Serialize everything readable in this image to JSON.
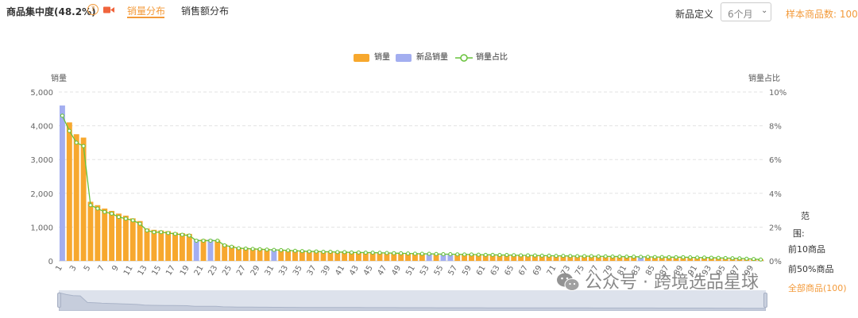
{
  "header": {
    "metric_title": "商品集中度(48.2%)",
    "help_icon": "question-circle-icon",
    "video_icon": "video-camera-icon",
    "tabs": [
      {
        "label": "销量分布",
        "active": true
      },
      {
        "label": "销售额分布",
        "active": false
      }
    ],
    "new_product_label": "新品定义",
    "period": {
      "value": "6个月",
      "icon": "chevron-down-icon"
    },
    "sample_count": "样本商品数: 100"
  },
  "colors": {
    "accent": "#f39a3a",
    "bar_normal": "#f7a82e",
    "bar_new": "#a3aef0",
    "line": "#67c23a"
  },
  "range_filter": {
    "label": "范",
    "label2": "围:",
    "options": [
      "前10商品",
      "前50%商品",
      "全部商品(100)"
    ],
    "selected": 2
  },
  "watermark": {
    "icon": "wechat-icon",
    "text": "公众号 · 跨境选品星球"
  },
  "chart_data": {
    "type": "bar",
    "legend": [
      "销量",
      "新品销量",
      "销量占比"
    ],
    "legend_placement": "top-center",
    "ylabel_left": "销量",
    "ylabel_right": "销量占比",
    "ylim_left": [
      0,
      5000
    ],
    "ylim_right": [
      0,
      10
    ],
    "yticks_left": [
      "0",
      "1,000",
      "2,000",
      "3,000",
      "4,000",
      "5,000"
    ],
    "yticks_right": [
      "0%",
      "2%",
      "4%",
      "6%",
      "8%",
      "10%"
    ],
    "xticks": [
      "1",
      "3",
      "5",
      "7",
      "9",
      "11",
      "13",
      "15",
      "17",
      "19",
      "21",
      "23",
      "25",
      "27",
      "29",
      "31",
      "33",
      "35",
      "37",
      "39",
      "41",
      "43",
      "45",
      "47",
      "49",
      "51",
      "53",
      "55",
      "57",
      "59",
      "61",
      "63",
      "65",
      "67",
      "69",
      "71",
      "73",
      "75",
      "77",
      "79",
      "81",
      "83",
      "85",
      "87",
      "89",
      "91",
      "93",
      "95",
      "97",
      "99"
    ],
    "grid": "horizontal-dashed",
    "x": [
      1,
      2,
      3,
      4,
      5,
      6,
      7,
      8,
      9,
      10,
      11,
      12,
      13,
      14,
      15,
      16,
      17,
      18,
      19,
      20,
      21,
      22,
      23,
      24,
      25,
      26,
      27,
      28,
      29,
      30,
      31,
      32,
      33,
      34,
      35,
      36,
      37,
      38,
      39,
      40,
      41,
      42,
      43,
      44,
      45,
      46,
      47,
      48,
      49,
      50,
      51,
      52,
      53,
      54,
      55,
      56,
      57,
      58,
      59,
      60,
      61,
      62,
      63,
      64,
      65,
      66,
      67,
      68,
      69,
      70,
      71,
      72,
      73,
      74,
      75,
      76,
      77,
      78,
      79,
      80,
      81,
      82,
      83,
      84,
      85,
      86,
      87,
      88,
      89,
      90,
      91,
      92,
      93,
      94,
      95,
      96,
      97,
      98,
      99,
      100
    ],
    "sales": [
      4600,
      4100,
      3750,
      3650,
      1750,
      1650,
      1550,
      1480,
      1400,
      1340,
      1260,
      1180,
      960,
      920,
      900,
      880,
      840,
      820,
      800,
      640,
      640,
      640,
      620,
      490,
      450,
      400,
      390,
      380,
      370,
      360,
      350,
      340,
      330,
      320,
      310,
      300,
      300,
      290,
      290,
      280,
      280,
      270,
      270,
      260,
      260,
      255,
      250,
      245,
      240,
      235,
      230,
      225,
      222,
      218,
      215,
      212,
      208,
      205,
      202,
      198,
      195,
      192,
      188,
      185,
      182,
      178,
      175,
      172,
      168,
      165,
      162,
      158,
      155,
      152,
      150,
      148,
      145,
      142,
      140,
      138,
      135,
      132,
      130,
      128,
      125,
      122,
      120,
      118,
      115,
      112,
      110,
      105,
      100,
      95,
      90,
      85,
      80,
      70,
      60,
      45
    ],
    "is_new": [
      1,
      0,
      0,
      0,
      0,
      0,
      0,
      0,
      0,
      0,
      0,
      0,
      0,
      0,
      0,
      0,
      0,
      0,
      0,
      1,
      0,
      1,
      0,
      0,
      0,
      0,
      0,
      0,
      0,
      0,
      1,
      0,
      0,
      0,
      0,
      0,
      0,
      0,
      0,
      0,
      0,
      0,
      0,
      0,
      0,
      0,
      0,
      0,
      0,
      0,
      0,
      0,
      1,
      0,
      1,
      1,
      0,
      0,
      0,
      0,
      0,
      0,
      0,
      0,
      0,
      0,
      0,
      0,
      0,
      0,
      0,
      0,
      0,
      0,
      0,
      0,
      0,
      0,
      0,
      0,
      0,
      0,
      1,
      0,
      0,
      0,
      0,
      0,
      0,
      0,
      0,
      0,
      0,
      0,
      0,
      0,
      0,
      0,
      0,
      0
    ],
    "ratio_percent": [
      8.6,
      7.7,
      7.0,
      6.8,
      3.3,
      3.1,
      2.9,
      2.8,
      2.6,
      2.5,
      2.4,
      2.2,
      1.8,
      1.7,
      1.7,
      1.65,
      1.6,
      1.55,
      1.5,
      1.2,
      1.2,
      1.2,
      1.2,
      0.92,
      0.84,
      0.75,
      0.73,
      0.71,
      0.69,
      0.67,
      0.65,
      0.64,
      0.62,
      0.6,
      0.58,
      0.56,
      0.56,
      0.54,
      0.54,
      0.52,
      0.52,
      0.5,
      0.5,
      0.49,
      0.49,
      0.48,
      0.47,
      0.46,
      0.45,
      0.44,
      0.43,
      0.42,
      0.42,
      0.41,
      0.4,
      0.4,
      0.39,
      0.38,
      0.38,
      0.37,
      0.36,
      0.36,
      0.35,
      0.35,
      0.34,
      0.33,
      0.33,
      0.32,
      0.31,
      0.31,
      0.3,
      0.3,
      0.29,
      0.28,
      0.28,
      0.28,
      0.27,
      0.27,
      0.26,
      0.26,
      0.25,
      0.25,
      0.24,
      0.24,
      0.23,
      0.23,
      0.22,
      0.22,
      0.22,
      0.21,
      0.2,
      0.2,
      0.19,
      0.18,
      0.17,
      0.16,
      0.15,
      0.13,
      0.11,
      0.08
    ]
  }
}
